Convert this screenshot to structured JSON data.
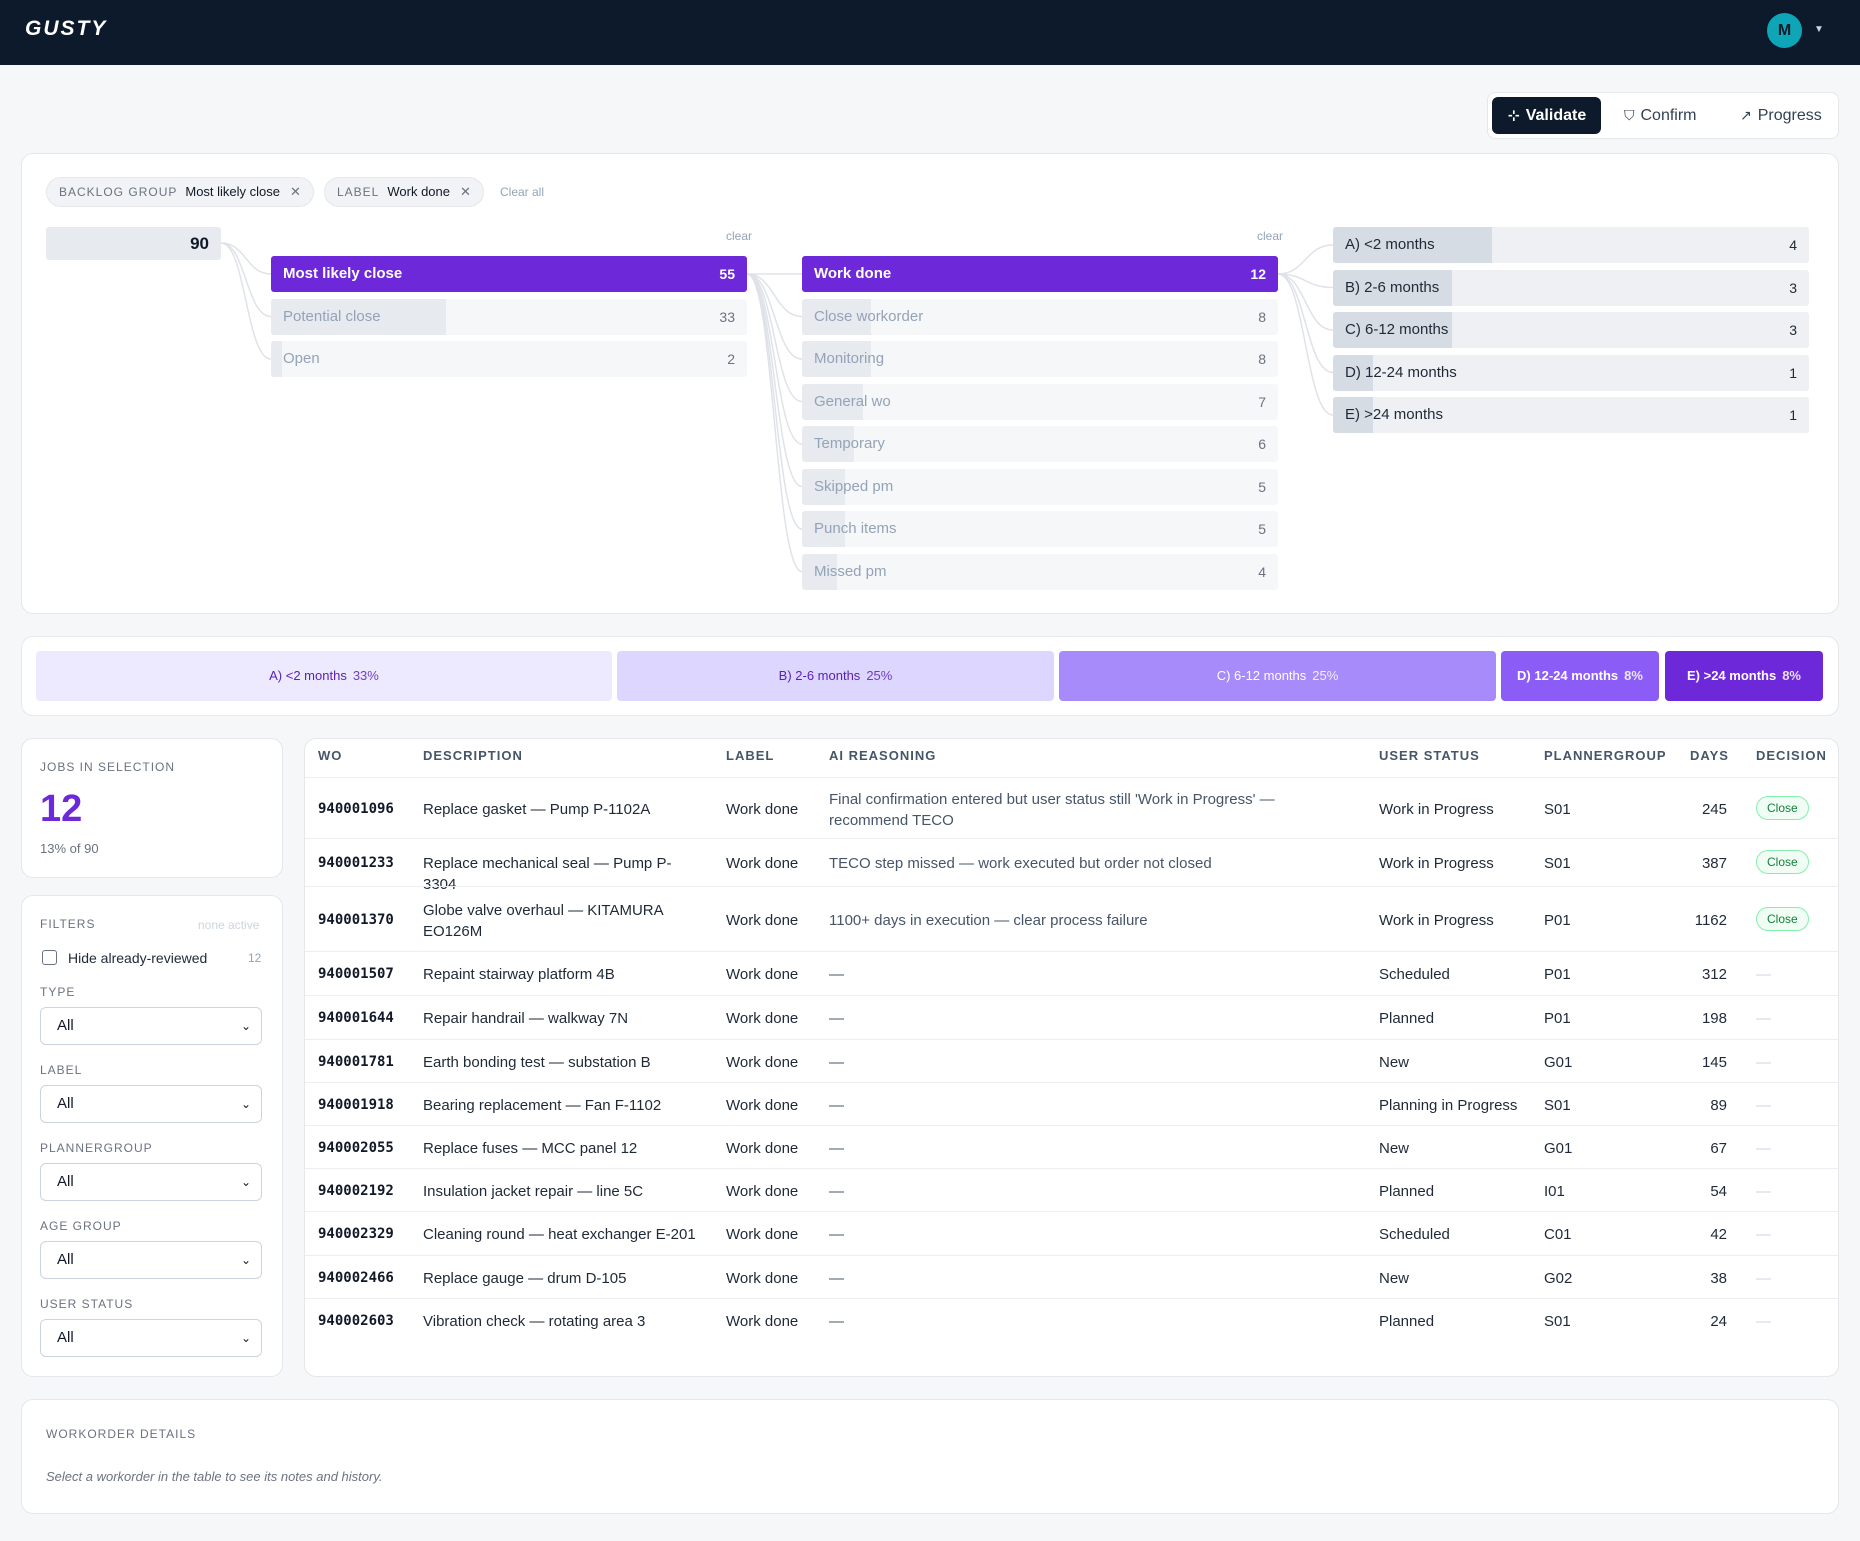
{
  "app": {
    "logo": "GUSTY",
    "avatar_initial": "M"
  },
  "modes": [
    {
      "label": "Validate",
      "icon": "validate-icon",
      "active": true
    },
    {
      "label": "Confirm",
      "icon": "shield-check-icon",
      "active": false
    },
    {
      "label": "Progress",
      "icon": "trend-up-icon",
      "active": false
    }
  ],
  "chips": [
    {
      "key": "BACKLOG GROUP",
      "value": "Most likely close"
    },
    {
      "key": "LABEL",
      "value": "Work done"
    }
  ],
  "clear_all": "Clear all",
  "sankey": {
    "total": "90",
    "clear_label": "clear",
    "groups": [
      {
        "label": "Most likely close",
        "value": 55,
        "selected": true
      },
      {
        "label": "Potential close",
        "value": 33,
        "selected": false
      },
      {
        "label": "Open",
        "value": 2,
        "selected": false
      }
    ],
    "labels": [
      {
        "label": "Work done",
        "value": 12,
        "selected": true
      },
      {
        "label": "Close workorder",
        "value": 8,
        "selected": false
      },
      {
        "label": "Monitoring",
        "value": 8,
        "selected": false
      },
      {
        "label": "General wo",
        "value": 7,
        "selected": false
      },
      {
        "label": "Temporary",
        "value": 6,
        "selected": false
      },
      {
        "label": "Skipped pm",
        "value": 5,
        "selected": false
      },
      {
        "label": "Punch items",
        "value": 5,
        "selected": false
      },
      {
        "label": "Missed pm",
        "value": 4,
        "selected": false
      }
    ],
    "ages": [
      {
        "label": "A) <2 months",
        "value": 4
      },
      {
        "label": "B) 2-6 months",
        "value": 3
      },
      {
        "label": "C) 6-12 months",
        "value": 3
      },
      {
        "label": "D) 12-24 months",
        "value": 1
      },
      {
        "label": "E) >24 months",
        "value": 1
      }
    ]
  },
  "age_bar": [
    {
      "label": "A) <2 months",
      "pct": "33%",
      "bg": "#ede9fe",
      "fg": "#5b21b6"
    },
    {
      "label": "B) 2-6 months",
      "pct": "25%",
      "bg": "#ddd6fe",
      "fg": "#5b21b6"
    },
    {
      "label": "C) 6-12 months",
      "pct": "25%",
      "bg": "#a78bfa",
      "fg": "#ffffff"
    },
    {
      "label": "D) 12-24 months",
      "pct": "8%",
      "bg": "#8b5cf6",
      "fg": "#ffffff"
    },
    {
      "label": "E) >24 months",
      "pct": "8%",
      "bg": "#6d28d9",
      "fg": "#ffffff"
    }
  ],
  "stats": {
    "title": "JOBS IN SELECTION",
    "value": "12",
    "sub": "13% of 90"
  },
  "filters": {
    "title": "FILTERS",
    "status": "none active",
    "hide_reviewed_label": "Hide already-reviewed",
    "hide_reviewed_count": "12",
    "selects": [
      {
        "label": "TYPE",
        "value": "All"
      },
      {
        "label": "LABEL",
        "value": "All"
      },
      {
        "label": "PLANNERGROUP",
        "value": "All"
      },
      {
        "label": "AGE GROUP",
        "value": "All"
      },
      {
        "label": "USER STATUS",
        "value": "All"
      }
    ]
  },
  "table": {
    "headers": {
      "wo": "WO",
      "description": "DESCRIPTION",
      "label": "LABEL",
      "ai": "AI REASONING",
      "status": "USER STATUS",
      "pg": "PLANNERGROUP",
      "days": "DAYS",
      "decision": "DECISION"
    },
    "rows": [
      {
        "wo": "940001096",
        "description": "Replace gasket — Pump P-1102A",
        "label": "Work done",
        "ai": "Final confirmation entered but user status still 'Work in Progress' — recommend TECO",
        "status": "Work in Progress",
        "pg": "S01",
        "days": "245",
        "decision": "Close"
      },
      {
        "wo": "940001233",
        "description": "Replace mechanical seal — Pump P-3304",
        "label": "Work done",
        "ai": "TECO step missed — work executed but order not closed",
        "status": "Work in Progress",
        "pg": "S01",
        "days": "387",
        "decision": "Close"
      },
      {
        "wo": "940001370",
        "description": "Globe valve overhaul — KITAMURA EO126M",
        "label": "Work done",
        "ai": "1100+ days in execution — clear process failure",
        "status": "Work in Progress",
        "pg": "P01",
        "days": "1162",
        "decision": "Close"
      },
      {
        "wo": "940001507",
        "description": "Repaint stairway platform 4B",
        "label": "Work done",
        "ai": "—",
        "status": "Scheduled",
        "pg": "P01",
        "days": "312",
        "decision": "—"
      },
      {
        "wo": "940001644",
        "description": "Repair handrail — walkway 7N",
        "label": "Work done",
        "ai": "—",
        "status": "Planned",
        "pg": "P01",
        "days": "198",
        "decision": "—"
      },
      {
        "wo": "940001781",
        "description": "Earth bonding test — substation B",
        "label": "Work done",
        "ai": "—",
        "status": "New",
        "pg": "G01",
        "days": "145",
        "decision": "—"
      },
      {
        "wo": "940001918",
        "description": "Bearing replacement — Fan F-1102",
        "label": "Work done",
        "ai": "—",
        "status": "Planning in Progress",
        "pg": "S01",
        "days": "89",
        "decision": "—"
      },
      {
        "wo": "940002055",
        "description": "Replace fuses — MCC panel 12",
        "label": "Work done",
        "ai": "—",
        "status": "New",
        "pg": "G01",
        "days": "67",
        "decision": "—"
      },
      {
        "wo": "940002192",
        "description": "Insulation jacket repair — line 5C",
        "label": "Work done",
        "ai": "—",
        "status": "Planned",
        "pg": "I01",
        "days": "54",
        "decision": "—"
      },
      {
        "wo": "940002329",
        "description": "Cleaning round — heat exchanger E-201",
        "label": "Work done",
        "ai": "—",
        "status": "Scheduled",
        "pg": "C01",
        "days": "42",
        "decision": "—"
      },
      {
        "wo": "940002466",
        "description": "Replace gauge — drum D-105",
        "label": "Work done",
        "ai": "—",
        "status": "New",
        "pg": "G02",
        "days": "38",
        "decision": "—"
      },
      {
        "wo": "940002603",
        "description": "Vibration check — rotating area 3",
        "label": "Work done",
        "ai": "—",
        "status": "Planned",
        "pg": "S01",
        "days": "24",
        "decision": "—"
      }
    ]
  },
  "details": {
    "title": "WORKORDER DETAILS",
    "hint": "Select a workorder in the table to see its notes and history."
  },
  "colors": {
    "accent": "#6d28d9",
    "header_bg": "#0d1a2b",
    "avatar": "#0ea5b7"
  }
}
